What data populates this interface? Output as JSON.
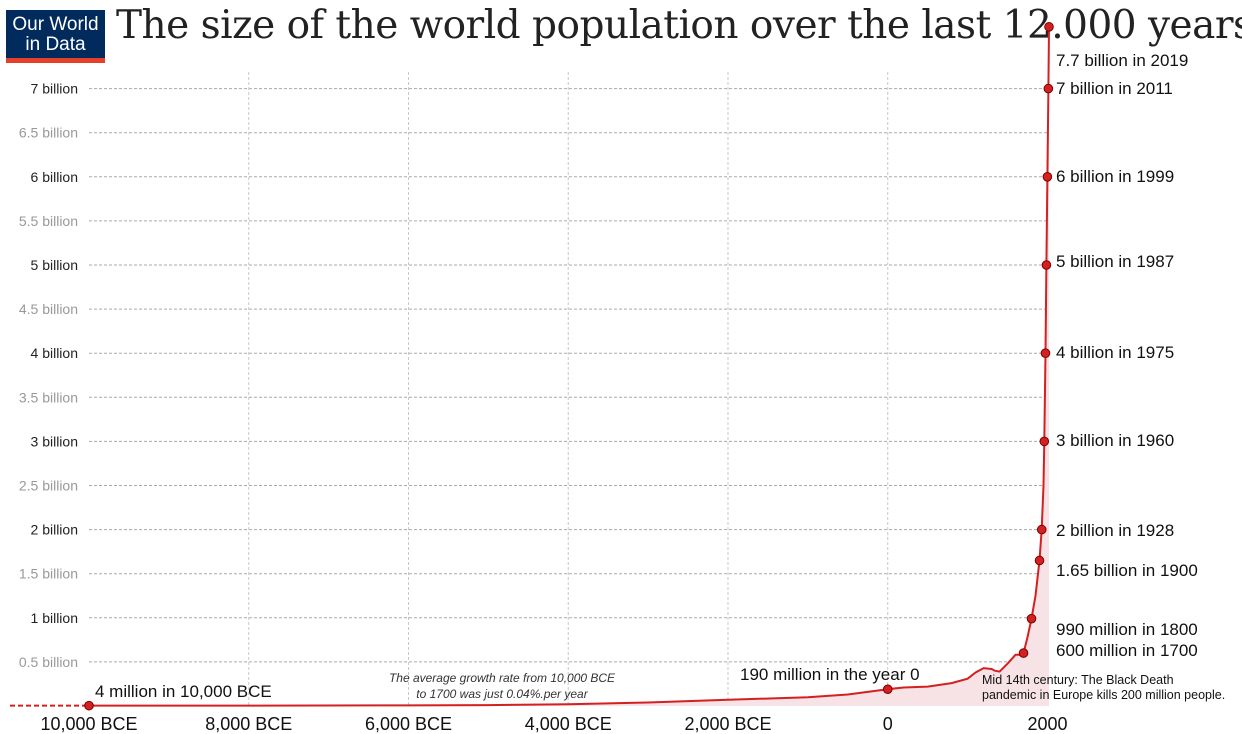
{
  "logo": {
    "line1": "Our World",
    "line2": "in Data"
  },
  "title": "The size of the world population over the last 12.000 years",
  "notes": {
    "growth_line1": "The average growth rate from 10,000 BCE",
    "growth_line2": "to 1700 was just  0.04%.per year",
    "black_death_line1": "Mid 14th century: The Black Death",
    "black_death_line2": "pandemic in Europe kills 200 million people."
  },
  "colors": {
    "line": "#d42020",
    "marker": "#d42020",
    "fill": "#f7e2e6",
    "grid": "#aaaaaa"
  },
  "chart_data": {
    "type": "line",
    "title": "The size of the world population over the last 12.000 years",
    "xlabel": "",
    "ylabel": "",
    "xlim": [
      -10000,
      2019
    ],
    "ylim": [
      0,
      7700000000
    ],
    "y_ticks": [
      {
        "value": 500000000,
        "label": "0.5 billion",
        "major": false
      },
      {
        "value": 1000000000,
        "label": "1 billion",
        "major": true
      },
      {
        "value": 1500000000,
        "label": "1.5 billion",
        "major": false
      },
      {
        "value": 2000000000,
        "label": "2 billion",
        "major": true
      },
      {
        "value": 2500000000,
        "label": "2.5 billion",
        "major": false
      },
      {
        "value": 3000000000,
        "label": "3 billion",
        "major": true
      },
      {
        "value": 3500000000,
        "label": "3.5  billion",
        "major": false
      },
      {
        "value": 4000000000,
        "label": "4 billion",
        "major": true
      },
      {
        "value": 4500000000,
        "label": "4.5 billion",
        "major": false
      },
      {
        "value": 5000000000,
        "label": "5 billion",
        "major": true
      },
      {
        "value": 5500000000,
        "label": "5.5 billion",
        "major": false
      },
      {
        "value": 6000000000,
        "label": "6 billion",
        "major": true
      },
      {
        "value": 6500000000,
        "label": "6.5 billion",
        "major": false
      },
      {
        "value": 7000000000,
        "label": "7 billion",
        "major": true
      }
    ],
    "x_ticks": [
      {
        "value": -10000,
        "label": "10,000 BCE"
      },
      {
        "value": -8000,
        "label": "8,000 BCE"
      },
      {
        "value": -6000,
        "label": "6,000 BCE"
      },
      {
        "value": -4000,
        "label": "4,000 BCE"
      },
      {
        "value": -2000,
        "label": "2,000 BCE"
      },
      {
        "value": 0,
        "label": "0"
      },
      {
        "value": 2000,
        "label": "2000"
      }
    ],
    "series": [
      {
        "x": [
          -10000,
          -8000,
          -6000,
          -5000,
          -4000,
          -3000,
          -2000,
          -1000,
          -500,
          0,
          200,
          500,
          800,
          1000,
          1100,
          1200,
          1300,
          1340,
          1400,
          1500,
          1600,
          1650,
          1700,
          1750,
          1800,
          1850,
          1900,
          1928,
          1950,
          1960,
          1975,
          1987,
          1999,
          2011,
          2019
        ],
        "y": [
          4000000,
          5000000,
          7000000,
          10000000,
          20000000,
          40000000,
          70000000,
          100000000,
          130000000,
          190000000,
          210000000,
          220000000,
          260000000,
          310000000,
          380000000,
          430000000,
          420000000,
          400000000,
          390000000,
          480000000,
          580000000,
          580000000,
          600000000,
          780000000,
          990000000,
          1250000000,
          1650000000,
          2000000000,
          2500000000,
          3000000000,
          4000000000,
          5000000000,
          6000000000,
          7000000000,
          7700000000
        ]
      }
    ],
    "milestones": [
      {
        "x": -10000,
        "y": 4000000,
        "label": "4 million in 10,000 BCE"
      },
      {
        "x": 0,
        "y": 190000000,
        "label": "190 million in the year 0"
      },
      {
        "x": 1700,
        "y": 600000000,
        "label": "600 million in 1700"
      },
      {
        "x": 1800,
        "y": 990000000,
        "label": "990 million in 1800"
      },
      {
        "x": 1900,
        "y": 1650000000,
        "label": "1.65 billion in 1900"
      },
      {
        "x": 1928,
        "y": 2000000000,
        "label": "2 billion in 1928"
      },
      {
        "x": 1960,
        "y": 3000000000,
        "label": "3 billion in 1960"
      },
      {
        "x": 1975,
        "y": 4000000000,
        "label": "4 billion in 1975"
      },
      {
        "x": 1987,
        "y": 5000000000,
        "label": "5 billion in 1987"
      },
      {
        "x": 1999,
        "y": 6000000000,
        "label": "6 billion in 1999"
      },
      {
        "x": 2011,
        "y": 7000000000,
        "label": "7 billion in 2011"
      },
      {
        "x": 2019,
        "y": 7700000000,
        "label": "7.7 billion in 2019"
      }
    ],
    "grid": true,
    "legend": "none"
  }
}
